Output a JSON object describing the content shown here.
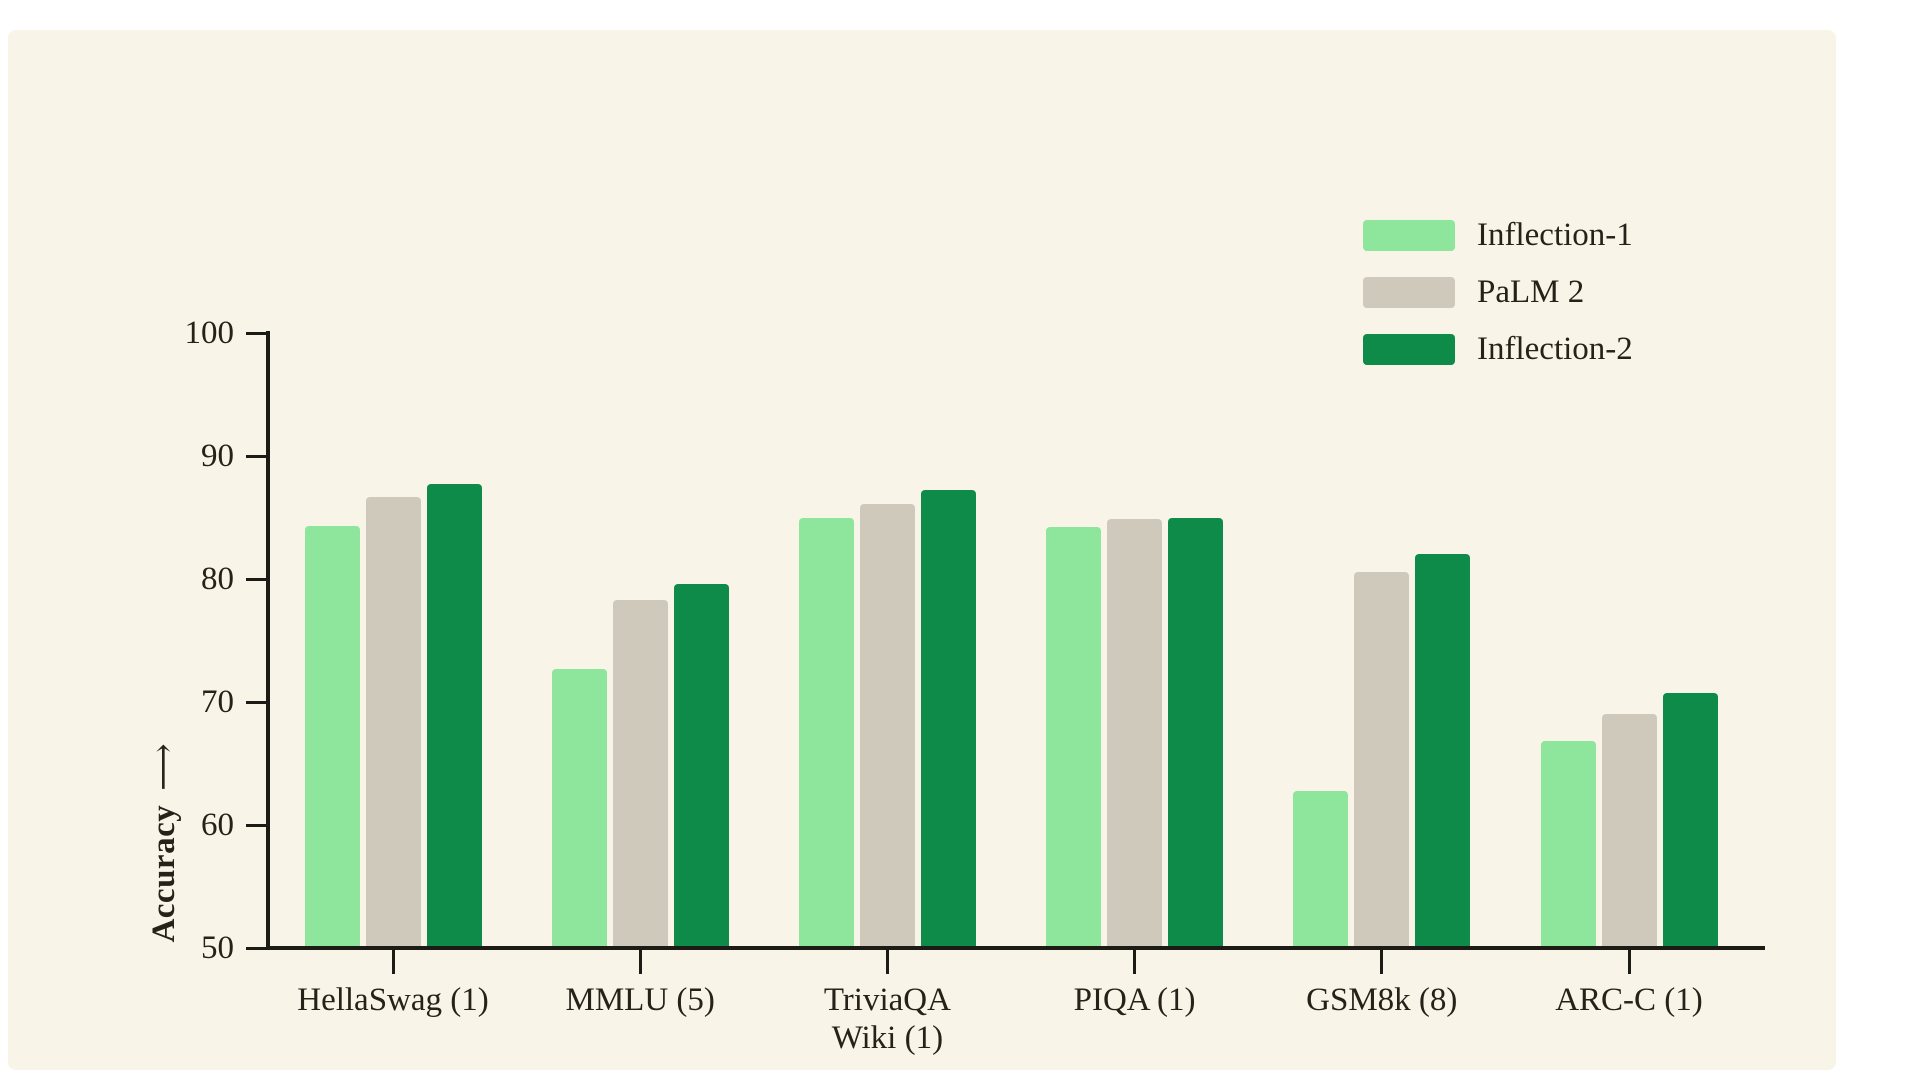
{
  "icons": {
    "long_arrow": "⟶"
  },
  "colors": {
    "page_background": "#ffffff",
    "panel_background": "#f8f4e7",
    "axis": "#1d1b15",
    "text": "#262219"
  },
  "chart_data": {
    "type": "bar",
    "title": "",
    "ylabel": "Accuracy",
    "xlabel": "",
    "ylim": [
      50,
      100
    ],
    "yticks": [
      50,
      60,
      70,
      80,
      90,
      100
    ],
    "grid": false,
    "legend_position": "top-right",
    "categories": [
      "HellaSwag (1)",
      "MMLU (5)",
      "TriviaQA\nWiki (1)",
      "PIQA (1)",
      "GSM8k (8)",
      "ARC-C (1)"
    ],
    "series": [
      {
        "name": "Inflection-1",
        "color": "#8ee59c",
        "values": [
          84.3,
          72.7,
          85.0,
          84.2,
          62.8,
          66.8
        ]
      },
      {
        "name": "PaLM 2",
        "color": "#cfc9bc",
        "values": [
          86.7,
          78.3,
          86.1,
          84.9,
          80.6,
          69.0
        ]
      },
      {
        "name": "Inflection-2",
        "color": "#0e8b49",
        "values": [
          87.7,
          79.6,
          87.2,
          85.0,
          82.0,
          70.7
        ]
      }
    ]
  }
}
